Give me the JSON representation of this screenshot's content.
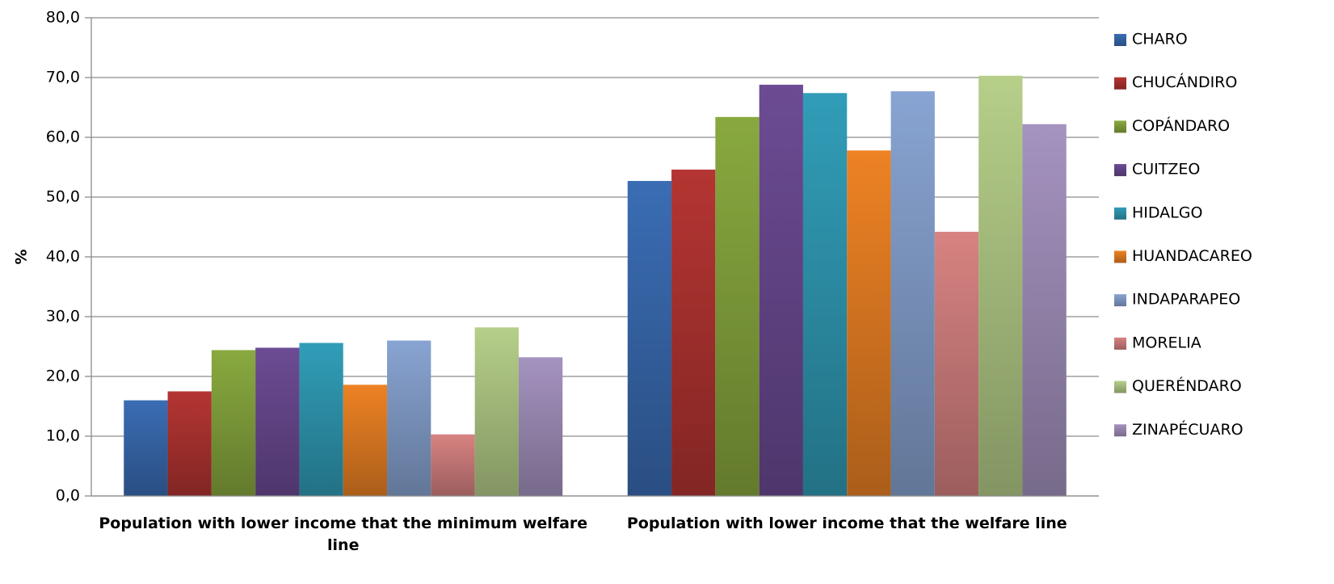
{
  "chart_data": {
    "type": "bar",
    "title": "",
    "xlabel": "",
    "ylabel": "%",
    "ylim": [
      0,
      80
    ],
    "yticks": [
      "0,0",
      "10,0",
      "20,0",
      "30,0",
      "40,0",
      "50,0",
      "60,0",
      "70,0",
      "80,0"
    ],
    "grid": true,
    "legend_position": "right",
    "categories": [
      [
        "Population with lower income that the minimum welfare",
        "line"
      ],
      [
        "Population with lower income that the welfare line"
      ]
    ],
    "series": [
      {
        "name": "CHARO",
        "color": "#3a6db4",
        "values": [
          16.0,
          52.7
        ]
      },
      {
        "name": "CHUCÁNDIRO",
        "color": "#b43532",
        "values": [
          17.5,
          54.6
        ]
      },
      {
        "name": "COPÁNDARO",
        "color": "#89a93f",
        "values": [
          24.4,
          63.4
        ]
      },
      {
        "name": "CUITZEO",
        "color": "#6c4b94",
        "values": [
          24.8,
          68.8
        ]
      },
      {
        "name": "HIDALGO",
        "color": "#319db8",
        "values": [
          25.6,
          67.4
        ]
      },
      {
        "name": "HUANDACAREO",
        "color": "#ed8224",
        "values": [
          18.6,
          57.8
        ]
      },
      {
        "name": "INDAPARAPEO",
        "color": "#88a4d2",
        "values": [
          26.0,
          67.7
        ]
      },
      {
        "name": "MORELIA",
        "color": "#d78381",
        "values": [
          10.3,
          44.2
        ]
      },
      {
        "name": "QUERÉNDARO",
        "color": "#b6cf89",
        "values": [
          28.2,
          70.3
        ]
      },
      {
        "name": "ZINAPÉCUARO",
        "color": "#a593c0",
        "values": [
          23.2,
          62.2
        ]
      }
    ]
  }
}
